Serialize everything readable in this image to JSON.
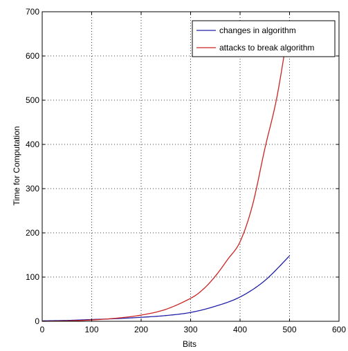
{
  "chart_data": {
    "type": "line",
    "title": "",
    "xlabel": "Bits",
    "ylabel": "Time for Computation",
    "xlim": [
      0,
      600
    ],
    "ylim": [
      0,
      700
    ],
    "xticks": [
      0,
      100,
      200,
      300,
      400,
      500,
      600
    ],
    "yticks": [
      0,
      100,
      200,
      300,
      400,
      500,
      600,
      700
    ],
    "xtick_labels": [
      "0",
      "100",
      "200",
      "300",
      "400",
      "500",
      "600"
    ],
    "ytick_labels": [
      "0",
      "100",
      "200",
      "300",
      "400",
      "500",
      "600",
      "700"
    ],
    "grid": true,
    "legend_position": "top-right",
    "series": [
      {
        "name": "changes in algorithm",
        "color": "#1f1fa8",
        "x": [
          0,
          50,
          100,
          150,
          200,
          250,
          300,
          350,
          400,
          450,
          500
        ],
        "y": [
          1,
          2,
          4,
          6,
          9,
          13,
          20,
          34,
          55,
          92,
          148
        ]
      },
      {
        "name": "attacks to break algorithm",
        "color": "#cc2222",
        "x": [
          0,
          50,
          100,
          150,
          200,
          250,
          300,
          325,
          350,
          375,
          400,
          425,
          450,
          475,
          500
        ],
        "y": [
          0,
          1,
          3,
          7,
          14,
          27,
          52,
          72,
          102,
          140,
          180,
          262,
          390,
          510,
          680
        ]
      }
    ]
  }
}
